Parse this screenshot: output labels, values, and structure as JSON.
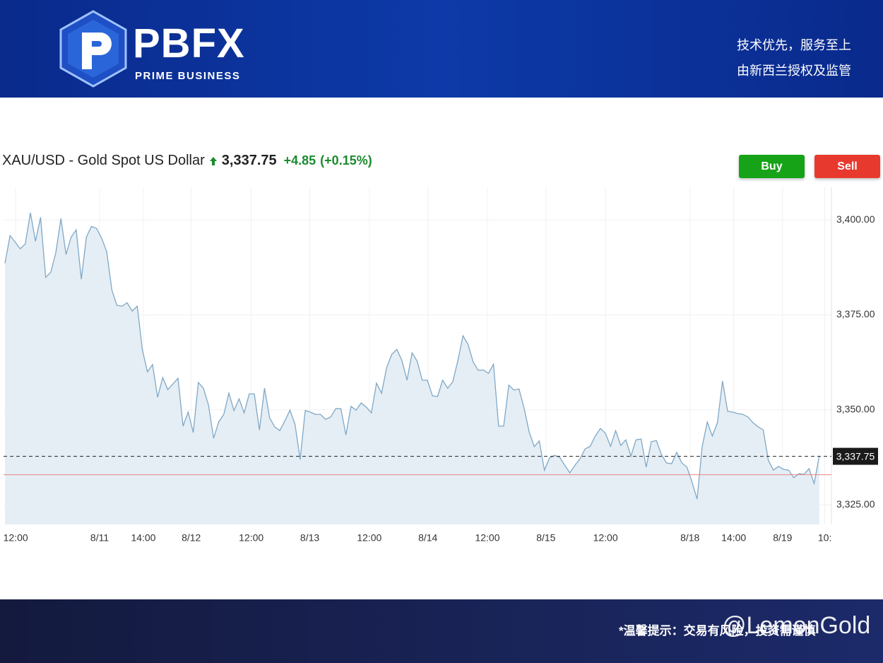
{
  "header": {
    "brand": "PBFX",
    "brand_sub": "PRIME BUSINESS",
    "slogan_1": "技术优先，服务至上",
    "slogan_2": "由新西兰授权及监管"
  },
  "buttons": {
    "buy": "Buy",
    "sell": "Sell"
  },
  "footer": {
    "notice": "*温馨提示：交易有风险，投资需谨慎",
    "watermark": "@LemonGold"
  },
  "chart_data": {
    "type": "area",
    "title": "XAU/USD - Gold Spot US Dollar",
    "price_label": "3,337.75",
    "change_label": "+4.85",
    "change_pct_label": "(+0.15%)",
    "color": "#7fa8c6",
    "fill": "#e5eef5",
    "prev_close": 3332.9,
    "prev_close_color": "#e8867f",
    "grid": true,
    "x": [
      0,
      1,
      2,
      3,
      4,
      5,
      6,
      7,
      8,
      9,
      10,
      11,
      12,
      13,
      14,
      15,
      16,
      17,
      18,
      19,
      20,
      21,
      22,
      23,
      24,
      25,
      26,
      27,
      28,
      29,
      30,
      31,
      32,
      33,
      34,
      35,
      36,
      37,
      38,
      39,
      40,
      41,
      42,
      43,
      44,
      45,
      46,
      47,
      48,
      49,
      50,
      51,
      52,
      53,
      54,
      55,
      56,
      57,
      58,
      59,
      60,
      61,
      62,
      63,
      64,
      65,
      66,
      67,
      68,
      69,
      70,
      71,
      72,
      73,
      74,
      75,
      76,
      77,
      78,
      79,
      80,
      81,
      82,
      83,
      84,
      85,
      86,
      87,
      88,
      89,
      90,
      91,
      92,
      93,
      94,
      95,
      96,
      97,
      98,
      99,
      100,
      101,
      102,
      103,
      104,
      105,
      106,
      107,
      108,
      109,
      110,
      111,
      112,
      113,
      114,
      115,
      116,
      117,
      118,
      119,
      120,
      121,
      122,
      123,
      124,
      125,
      126,
      127,
      128,
      129,
      130,
      131,
      132,
      133,
      134,
      135,
      136,
      137,
      138,
      139,
      140,
      141,
      142,
      143,
      144,
      145,
      146,
      147,
      148,
      149,
      150,
      151,
      152,
      153,
      154,
      155,
      156,
      157,
      158,
      159,
      160
    ],
    "values": [
      3388.6,
      3395.9,
      3394.2,
      3392.4,
      3393.7,
      3401.9,
      3394.4,
      3400.7,
      3384.9,
      3386.2,
      3391.4,
      3400.4,
      3390.9,
      3395.5,
      3397.4,
      3384.4,
      3395.5,
      3398.3,
      3397.8,
      3395.2,
      3391.6,
      3381.6,
      3377.5,
      3377.3,
      3378.2,
      3376.0,
      3377.3,
      3365.8,
      3360.0,
      3361.9,
      3353.3,
      3358.5,
      3355.3,
      3356.8,
      3358.3,
      3345.7,
      3349.4,
      3344.0,
      3357.2,
      3355.7,
      3351.2,
      3342.5,
      3346.8,
      3348.8,
      3354.4,
      3349.8,
      3352.9,
      3349.2,
      3354.2,
      3354.2,
      3344.7,
      3355.7,
      3347.9,
      3345.5,
      3344.5,
      3347.1,
      3349.9,
      3346.2,
      3336.9,
      3349.8,
      3349.4,
      3348.8,
      3348.8,
      3347.5,
      3348.1,
      3350.3,
      3350.3,
      3343.4,
      3350.9,
      3349.9,
      3351.8,
      3350.7,
      3349.2,
      3357.0,
      3354.4,
      3361.1,
      3364.6,
      3365.9,
      3363.0,
      3357.8,
      3365.0,
      3362.8,
      3357.8,
      3357.8,
      3353.7,
      3353.5,
      3357.8,
      3355.7,
      3357.4,
      3363.0,
      3369.5,
      3367.2,
      3362.6,
      3360.4,
      3360.5,
      3359.6,
      3362.0,
      3345.7,
      3345.7,
      3356.5,
      3355.2,
      3355.5,
      3350.5,
      3344.2,
      3340.3,
      3341.8,
      3334.1,
      3337.3,
      3338.0,
      3337.5,
      3335.4,
      3333.4,
      3335.4,
      3337.1,
      3339.7,
      3340.4,
      3343.1,
      3345.1,
      3343.8,
      3340.4,
      3344.5,
      3340.6,
      3342.1,
      3337.8,
      3342.1,
      3342.3,
      3334.9,
      3341.6,
      3341.9,
      3338.2,
      3336.0,
      3335.8,
      3338.8,
      3336.0,
      3334.9,
      3331.0,
      3326.5,
      3340.3,
      3346.8,
      3343.1,
      3346.6,
      3357.6,
      3349.6,
      3349.4,
      3349.0,
      3348.8,
      3348.1,
      3346.6,
      3345.5,
      3344.7,
      3336.7,
      3334.1,
      3335.1,
      3334.3,
      3334.1,
      3332.1,
      3333.2,
      3333.0,
      3334.5,
      3330.6,
      3337.75
    ],
    "xlim": [
      -0.28,
      162.4
    ],
    "xticks": [
      {
        "value": 2.1,
        "label": "12:00"
      },
      {
        "value": 18.6,
        "label": "8/11"
      },
      {
        "value": 27.2,
        "label": "14:00"
      },
      {
        "value": 36.6,
        "label": "8/12"
      },
      {
        "value": 48.4,
        "label": "12:00"
      },
      {
        "value": 59.9,
        "label": "8/13"
      },
      {
        "value": 71.6,
        "label": "12:00"
      },
      {
        "value": 83.1,
        "label": "8/14"
      },
      {
        "value": 94.8,
        "label": "12:00"
      },
      {
        "value": 106.3,
        "label": "8/15"
      },
      {
        "value": 118.0,
        "label": "12:00"
      },
      {
        "value": 134.6,
        "label": "8/18"
      },
      {
        "value": 143.2,
        "label": "14:00"
      },
      {
        "value": 152.8,
        "label": "8/19"
      },
      {
        "value": 161.1,
        "label": "10:"
      }
    ],
    "ylim": [
      3319.8,
      3408.6
    ],
    "yticks": [
      {
        "value": 3325,
        "label": "3,325.00"
      },
      {
        "value": 3350,
        "label": "3,350.00"
      },
      {
        "value": 3375,
        "label": "3,375.00"
      },
      {
        "value": 3400,
        "label": "3,400.00"
      }
    ]
  }
}
